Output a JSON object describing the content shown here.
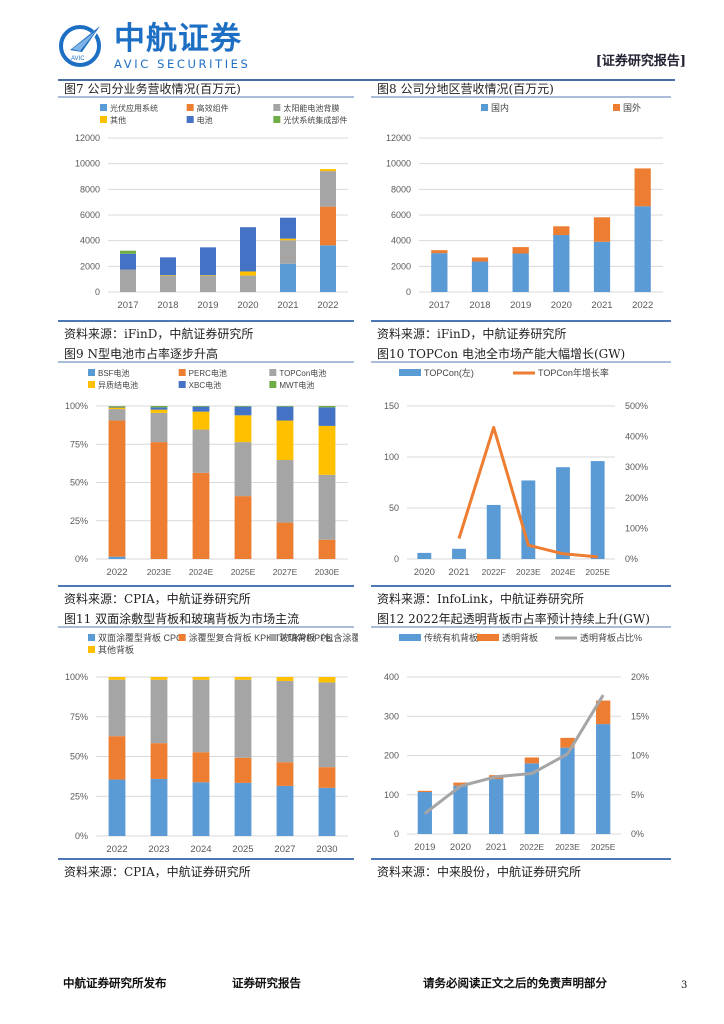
{
  "header": {
    "logo_cn": "中航证券",
    "logo_en": "AVIC SECURITIES",
    "logo_badge": "AVIC",
    "report_tag": "[证券研究报告]"
  },
  "figures": [
    {
      "id": "fig7",
      "title": "图7 公司分业务营收情况(百万元)",
      "source": "资料来源：iFinD，中航证券研究所"
    },
    {
      "id": "fig8",
      "title": "图8 公司分地区营收情况(百万元)",
      "source": "资料来源：iFinD，中航证券研究所"
    },
    {
      "id": "fig9",
      "title": "图9 N型电池市占率逐步升高",
      "source": "资料来源：CPIA，中航证券研究所"
    },
    {
      "id": "fig10",
      "title": "图10 TOPCon 电池全市场产能大幅增长(GW)",
      "source": "资料来源：InfoLink，中航证券研究所"
    },
    {
      "id": "fig11",
      "title": "图11 双面涂敷型背板和玻璃背板为市场主流",
      "source": "资料来源：CPIA，中航证券研究所"
    },
    {
      "id": "fig12",
      "title": "图12 2022年起透明背板市占率预计持续上升(GW)",
      "source": "资料来源：中来股份，中航证券研究所"
    }
  ],
  "footer": {
    "publisher": "中航证券研究所发布",
    "report_type": "证券研究报告",
    "disclaimer": "请务必阅读正文之后的免责声明部分",
    "page_number": "3"
  },
  "chart_data": [
    {
      "id": "fig7",
      "type": "bar",
      "stacked": true,
      "title": "公司分业务营收情况(百万元)",
      "categories": [
        "2017",
        "2018",
        "2019",
        "2020",
        "2021",
        "2022"
      ],
      "ylim": [
        0,
        12000
      ],
      "yticks": [
        0,
        2000,
        4000,
        6000,
        8000,
        10000,
        12000
      ],
      "grid": true,
      "legend_position": "top",
      "series": [
        {
          "name": "光伏应用系统",
          "color": "#5b9bd5",
          "values": [
            0,
            0,
            0,
            0,
            2200,
            3640
          ]
        },
        {
          "name": "高效组件",
          "color": "#ed7d31",
          "values": [
            0,
            0,
            0,
            0,
            0,
            3010
          ]
        },
        {
          "name": "太阳能电池背膜",
          "color": "#a5a5a5",
          "values": [
            1750,
            1280,
            1280,
            1280,
            1830,
            2770
          ]
        },
        {
          "name": "其他",
          "color": "#ffc000",
          "values": [
            0,
            30,
            30,
            320,
            130,
            160
          ]
        },
        {
          "name": "电池",
          "color": "#4472c4",
          "values": [
            1230,
            1390,
            2170,
            3450,
            1630,
            0
          ]
        },
        {
          "name": "光伏系统集成部件",
          "color": "#70ad47",
          "values": [
            240,
            0,
            0,
            0,
            0,
            0
          ]
        }
      ]
    },
    {
      "id": "fig8",
      "type": "bar",
      "stacked": true,
      "title": "公司分地区营收情况(百万元)",
      "categories": [
        "2017",
        "2018",
        "2019",
        "2020",
        "2021",
        "2022"
      ],
      "ylim": [
        0,
        12000
      ],
      "yticks": [
        0,
        2000,
        4000,
        6000,
        8000,
        10000,
        12000
      ],
      "grid": true,
      "legend_position": "top",
      "series": [
        {
          "name": "国内",
          "color": "#5b9bd5",
          "values": [
            3030,
            2375,
            3000,
            4440,
            3915,
            6680
          ]
        },
        {
          "name": "国外",
          "color": "#ed7d31",
          "values": [
            230,
            315,
            500,
            680,
            1905,
            2950
          ]
        }
      ]
    },
    {
      "id": "fig9",
      "type": "bar",
      "stacked": true,
      "percent": true,
      "title": "N型电池市占率逐步升高",
      "categories": [
        "2022",
        "2023E",
        "2024E",
        "2025E",
        "2027E",
        "2030E"
      ],
      "ylim": [
        0,
        100
      ],
      "yticks": [
        "0%",
        "25%",
        "50%",
        "75%",
        "100%"
      ],
      "grid": true,
      "legend_position": "top",
      "series": [
        {
          "name": "BSF电池",
          "color": "#5b9bd5",
          "values": [
            1.5,
            0,
            0,
            0,
            0,
            0
          ]
        },
        {
          "name": "PERC电池",
          "color": "#ed7d31",
          "values": [
            89,
            76.4,
            56.3,
            41.1,
            23.8,
            12.6
          ]
        },
        {
          "name": "TOPCon电池",
          "color": "#a5a5a5",
          "values": [
            7.5,
            19.1,
            28.3,
            35.3,
            40.9,
            42.4
          ]
        },
        {
          "name": "异质结电池",
          "color": "#ffc000",
          "values": [
            1,
            2.1,
            11.7,
            17.5,
            25.8,
            32
          ]
        },
        {
          "name": "XBC电池",
          "color": "#4472c4",
          "values": [
            0.5,
            1.5,
            3.3,
            5.7,
            9.1,
            12.1
          ]
        },
        {
          "name": "MWT电池",
          "color": "#70ad47",
          "values": [
            0.5,
            0.9,
            0.4,
            0.4,
            0.4,
            0.9
          ]
        }
      ]
    },
    {
      "id": "fig10",
      "type": "bar",
      "title": "TOPCon 电池全市场产能大幅增长(GW)",
      "categories": [
        "2020",
        "2021",
        "2022F",
        "2023E",
        "2024E",
        "2025E"
      ],
      "ylim": [
        0,
        150
      ],
      "yticks": [
        0,
        50,
        100,
        150
      ],
      "y2lim": [
        0,
        500
      ],
      "y2ticks": [
        "0%",
        "100%",
        "200%",
        "300%",
        "400%",
        "500%"
      ],
      "grid": true,
      "legend_position": "top",
      "series": [
        {
          "name": "TOPCon(左)",
          "type": "bar",
          "color": "#5b9bd5",
          "values": [
            6,
            10,
            53,
            77,
            90,
            96
          ]
        },
        {
          "name": "TOPCon年增长率",
          "type": "line",
          "axis": "right",
          "color": "#ed7d31",
          "values": [
            null,
            67,
            430,
            45,
            17,
            7
          ]
        }
      ]
    },
    {
      "id": "fig11",
      "type": "bar",
      "stacked": true,
      "percent": true,
      "title": "双面涂敷型背板和玻璃背板为市场主流",
      "categories": [
        "2022",
        "2023",
        "2024",
        "2025",
        "2027",
        "2030"
      ],
      "ylim": [
        0,
        100
      ],
      "yticks": [
        "0%",
        "25%",
        "50%",
        "75%",
        "100%"
      ],
      "grid": true,
      "legend_position": "top",
      "series": [
        {
          "name": "双面涂覆型背板 CPC",
          "color": "#5b9bd5",
          "values": [
            35.5,
            35.9,
            33.8,
            33.4,
            31.5,
            30.3
          ]
        },
        {
          "name": "涂覆型复合背板 KPK/TPT/KPF/PPE",
          "color": "#ed7d31",
          "values": [
            27.3,
            22.5,
            18.9,
            15.8,
            14.9,
            13
          ]
        },
        {
          "name": "玻璃背板（包含涂覆玻璃和镀膜玻璃）",
          "color": "#a5a5a5",
          "values": [
            35.5,
            39.9,
            45.6,
            49.1,
            51.1,
            53.3
          ]
        },
        {
          "name": "其他背板",
          "color": "#ffc000",
          "values": [
            1.7,
            1.7,
            1.7,
            1.7,
            2.5,
            3.4
          ]
        }
      ]
    },
    {
      "id": "fig12",
      "type": "bar",
      "stacked": true,
      "title": "2022年起透明背板市占率预计持续上升(GW)",
      "categories": [
        "2019",
        "2020",
        "2021",
        "2022E",
        "2023E",
        "2025E"
      ],
      "ylim": [
        0,
        400
      ],
      "yticks": [
        0,
        100,
        200,
        300,
        400
      ],
      "y2lim": [
        0,
        20
      ],
      "y2ticks": [
        "0%",
        "5%",
        "10%",
        "15%",
        "20%"
      ],
      "grid": true,
      "legend_position": "top",
      "series": [
        {
          "name": "传统有机背板",
          "type": "bar",
          "color": "#5b9bd5",
          "values": [
            107,
            123,
            140,
            180,
            220,
            280
          ]
        },
        {
          "name": "透明背板",
          "type": "bar",
          "color": "#ed7d31",
          "values": [
            3,
            8,
            10,
            15,
            25,
            60
          ]
        },
        {
          "name": "透明背板占比%",
          "type": "line",
          "axis": "right",
          "color": "#a5a5a5",
          "values": [
            2.6,
            6.1,
            7.3,
            7.7,
            10.2,
            17.7
          ]
        }
      ]
    }
  ]
}
